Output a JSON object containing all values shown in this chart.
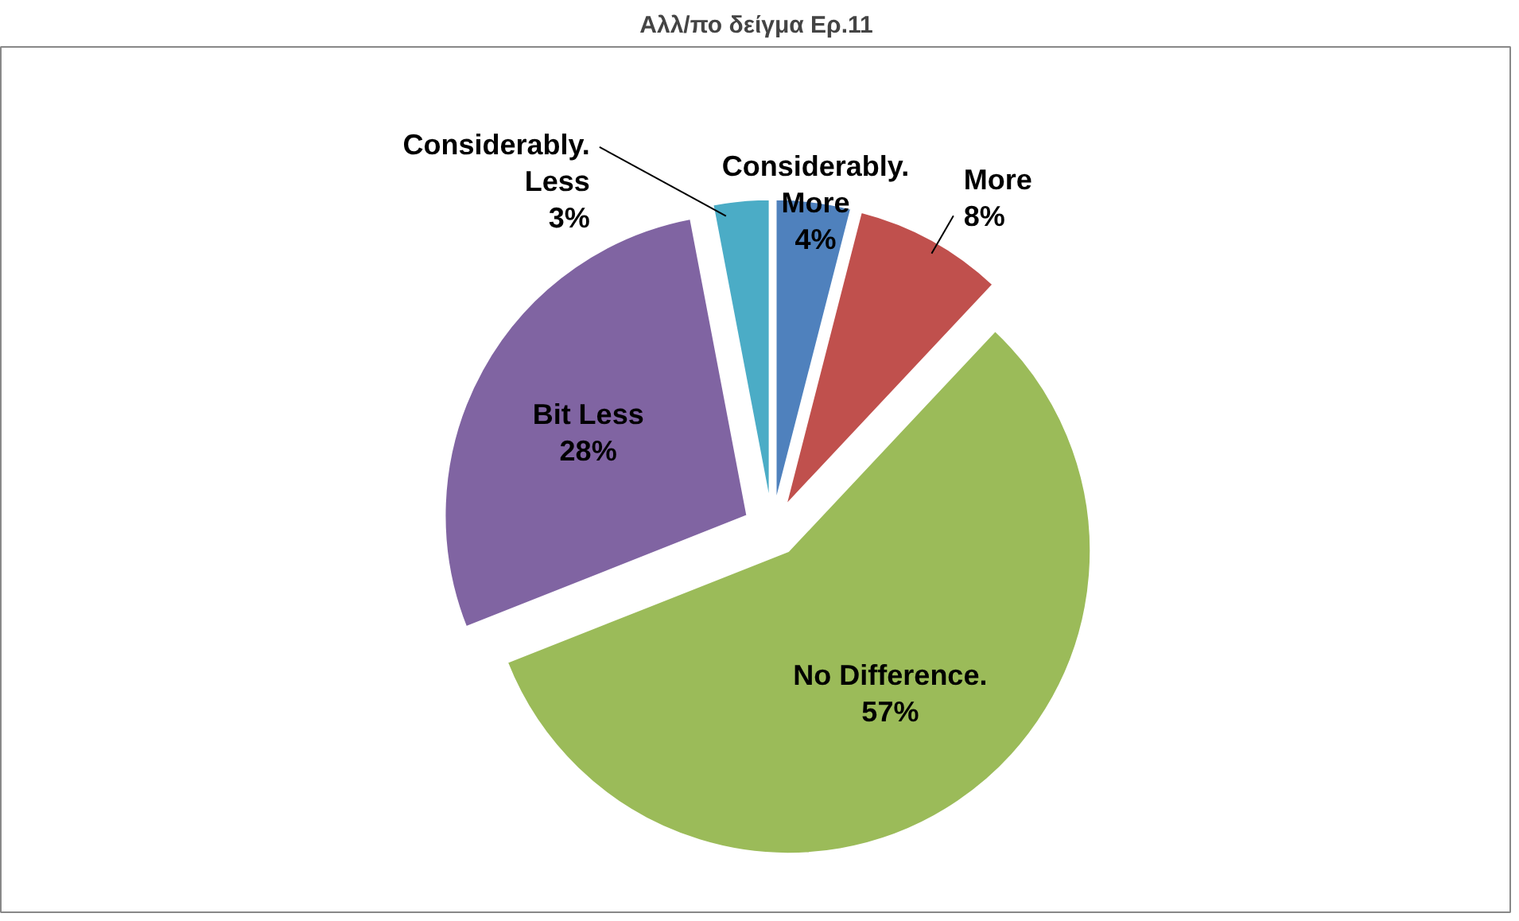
{
  "chart_data": {
    "type": "pie",
    "title": "Αλλ/πο δείγμα Ερ.11",
    "categories": [
      "Considerably. More",
      "More",
      "No Difference.",
      "Bit Less",
      "Considerably. Less"
    ],
    "values": [
      4,
      8,
      57,
      28,
      3
    ],
    "colors": [
      "#4f81bd",
      "#c0504d",
      "#9bbb59",
      "#8064a2",
      "#4bacc6"
    ],
    "value_labels": [
      "4%",
      "8%",
      "57%",
      "28%",
      "3%"
    ]
  }
}
